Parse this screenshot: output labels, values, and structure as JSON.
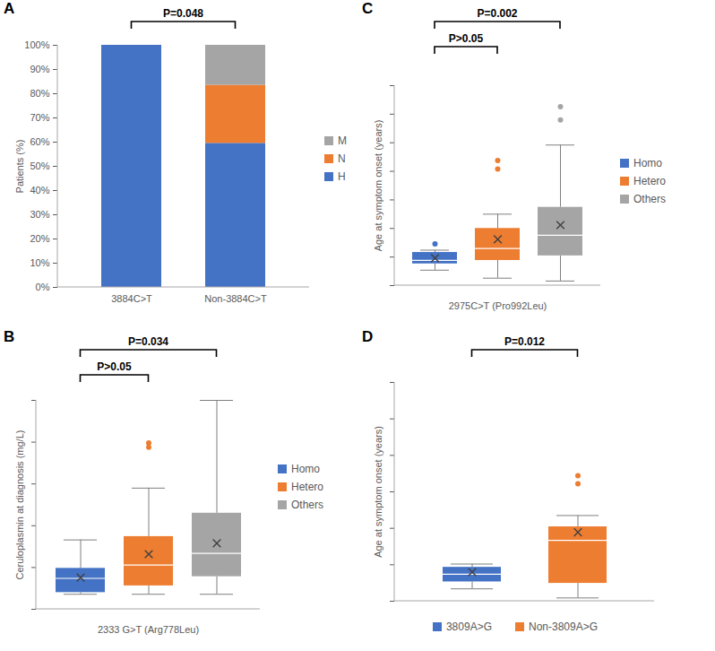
{
  "chart_data": [
    {
      "title": "A",
      "type": "bar",
      "stacked": true,
      "categories": [
        "3884C>T",
        "Non-3884C>T"
      ],
      "series": [
        {
          "name": "H",
          "color": "#4472c4",
          "values": [
            100,
            59.5
          ]
        },
        {
          "name": "N",
          "color": "#ed7d31",
          "values": [
            0,
            24
          ]
        },
        {
          "name": "M",
          "color": "#a5a5a5",
          "values": [
            0,
            16.5
          ]
        }
      ],
      "y_label": "Patients (%)",
      "ylim": [
        0,
        100
      ],
      "yticks": [
        {
          "value": 0,
          "label": "0%"
        },
        {
          "value": 10,
          "label": "10%"
        },
        {
          "value": 20,
          "label": "20%"
        },
        {
          "value": 30,
          "label": "30%"
        },
        {
          "value": 40,
          "label": "40%"
        },
        {
          "value": 50,
          "label": "50%"
        },
        {
          "value": 60,
          "label": "60%"
        },
        {
          "value": 70,
          "label": "70%"
        },
        {
          "value": 80,
          "label": "80%"
        },
        {
          "value": 90,
          "label": "90%"
        },
        {
          "value": 100,
          "label": "100%"
        }
      ],
      "grid": false,
      "legend": "right",
      "annotations": [
        {
          "text": "P=0.048",
          "from": "3884C>T",
          "to": "Non-3884C>T"
        }
      ]
    },
    {
      "title": "B",
      "type": "box",
      "x_label": "2333 G>T (Arg778Leu)",
      "y_label": "Ceruloplasmin at diagnosis (mg/L)",
      "series": [
        {
          "name": "Homo",
          "color": "#4472c4",
          "min": 18,
          "q1": 20,
          "median": 37,
          "q3": 49,
          "max": 83,
          "mean": 38,
          "outliers": []
        },
        {
          "name": "Hetero",
          "color": "#ed7d31",
          "min": 18,
          "q1": 28,
          "median": 53,
          "q3": 87,
          "max": 145,
          "mean": 66,
          "outliers": [
            194,
            199
          ]
        },
        {
          "name": "Others",
          "color": "#a5a5a5",
          "min": 18,
          "q1": 39,
          "median": 67,
          "q3": 115,
          "max": 250,
          "mean": 79,
          "outliers": []
        }
      ],
      "ylim": [
        0,
        250
      ],
      "yticks": [
        0,
        50,
        100,
        150,
        200,
        250
      ],
      "tick_labels": false,
      "grid": false,
      "legend": "right",
      "annotations": [
        {
          "text": "P=0.034",
          "from": "Homo",
          "to": "Others"
        },
        {
          "text": "P>0.05",
          "from": "Homo",
          "to": "Hetero"
        }
      ]
    },
    {
      "title": "C",
      "type": "box",
      "x_label": "2975C>T (Pro992Leu)",
      "y_label": "Age at symptom onset (years)",
      "series": [
        {
          "name": "Homo",
          "color": "#4472c4",
          "min": 2.7,
          "q1": 3.8,
          "median": 4.4,
          "q3": 5.8,
          "max": 6.2,
          "mean": 4.8,
          "outliers": [
            7.3
          ]
        },
        {
          "name": "Hetero",
          "color": "#ed7d31",
          "min": 1.3,
          "q1": 4.4,
          "median": 6.5,
          "q3": 10,
          "max": 12.5,
          "mean": 8.1,
          "outliers": [
            20.4,
            21.9
          ]
        },
        {
          "name": "Others",
          "color": "#a5a5a5",
          "min": 0.8,
          "q1": 5.2,
          "median": 8.8,
          "q3": 13.7,
          "max": 24.6,
          "mean": 10.6,
          "outliers": [
            29,
            31.3
          ]
        }
      ],
      "ylim": [
        0,
        35
      ],
      "yticks": [
        0,
        5,
        10,
        15,
        20,
        25,
        30,
        35
      ],
      "tick_labels": false,
      "grid": false,
      "legend": "right",
      "annotations": [
        {
          "text": "P=0.002",
          "from": "Homo",
          "to": "Others"
        },
        {
          "text": "P>0.05",
          "from": "Homo",
          "to": "Hetero"
        }
      ]
    },
    {
      "title": "D",
      "type": "box",
      "y_label": "Age at symptom onset (years)",
      "series": [
        {
          "name": "3809A>G",
          "color": "#4472c4",
          "min": 3.4,
          "q1": 5.3,
          "median": 7.4,
          "q3": 9.3,
          "max": 10.2,
          "mean": 8,
          "outliers": []
        },
        {
          "name": "Non-3809A>G",
          "color": "#ed7d31",
          "min": 0.9,
          "q1": 4.9,
          "median": 16.7,
          "q3": 20.4,
          "max": 23.5,
          "mean": 18.9,
          "outliers": [
            32.2,
            34.4
          ]
        }
      ],
      "ylim": [
        0,
        60
      ],
      "yticks": [
        0,
        10,
        20,
        30,
        40,
        50,
        60
      ],
      "tick_labels": false,
      "grid": false,
      "legend": "bottom",
      "annotations": [
        {
          "text": "P=0.012",
          "from": "3809A>G",
          "to": "Non-3809A>G"
        }
      ]
    }
  ]
}
